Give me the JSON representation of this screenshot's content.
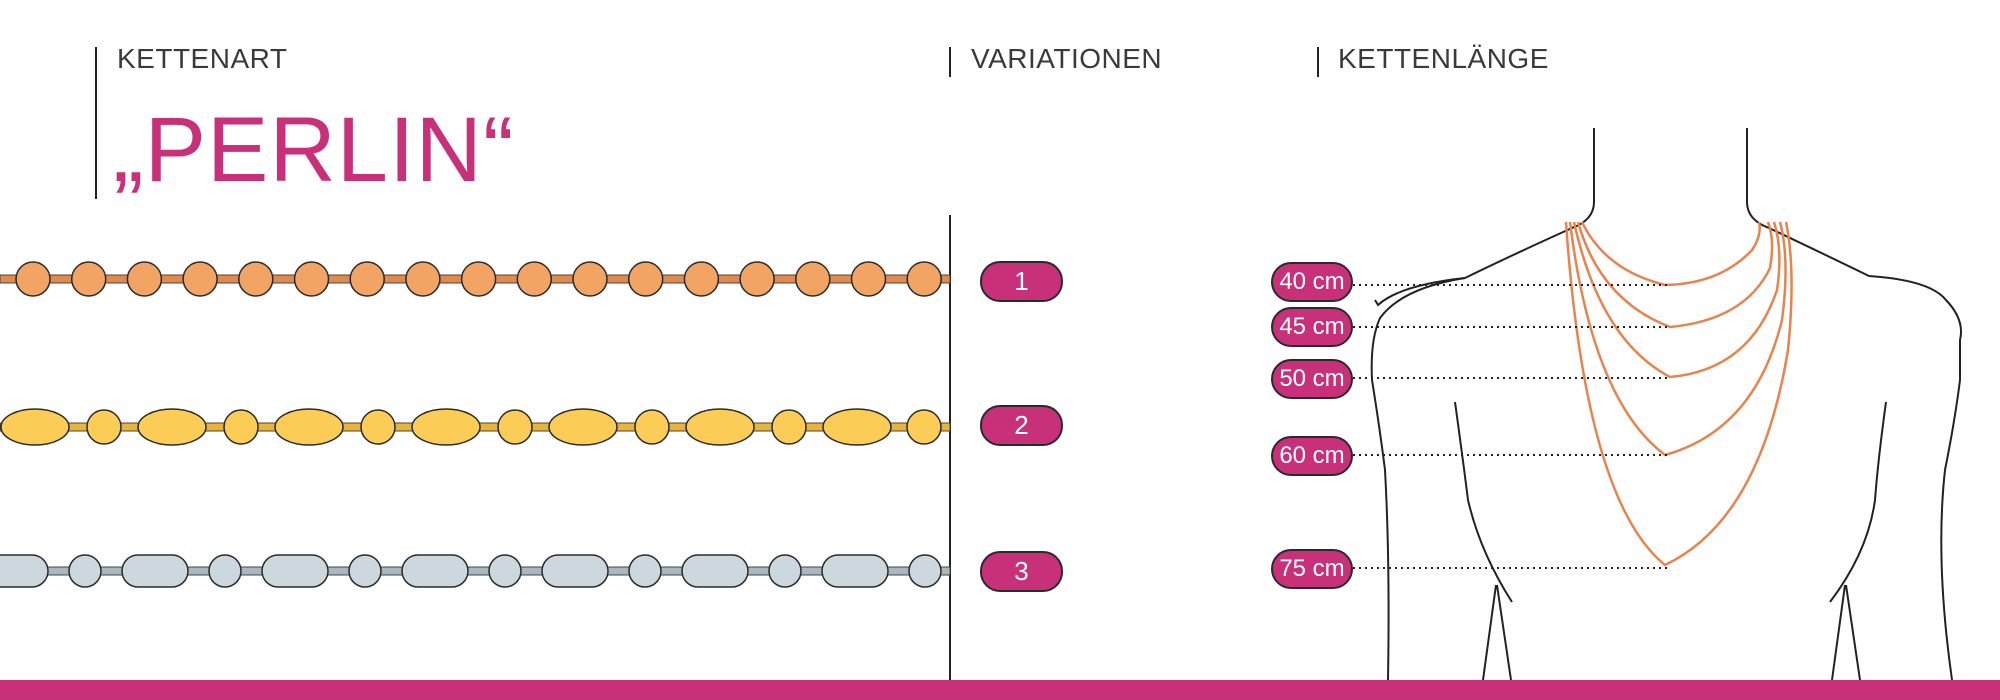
{
  "headers": {
    "chain_type": "KETTENART",
    "variations": "VARIATIONEN",
    "chain_length": "KETTENLÄNGE"
  },
  "title": "„PERLIN“",
  "variations": [
    {
      "label": "1",
      "style": "round-beads",
      "fill": "#f2a464",
      "wire": "#e28a4c"
    },
    {
      "label": "2",
      "style": "oval-and-round-beads",
      "fill": "#fbcd56",
      "wire": "#e8b538"
    },
    {
      "label": "3",
      "style": "rounded-rect-and-round-beads",
      "fill": "#ccd8de",
      "wire": "#a9b7bf"
    }
  ],
  "lengths": [
    {
      "label": "40 cm"
    },
    {
      "label": "45 cm"
    },
    {
      "label": "50 cm"
    },
    {
      "label": "60 cm"
    },
    {
      "label": "75 cm"
    }
  ],
  "colors": {
    "accent": "#c8307a",
    "necklace": "#e8834d",
    "outline": "#222222"
  }
}
